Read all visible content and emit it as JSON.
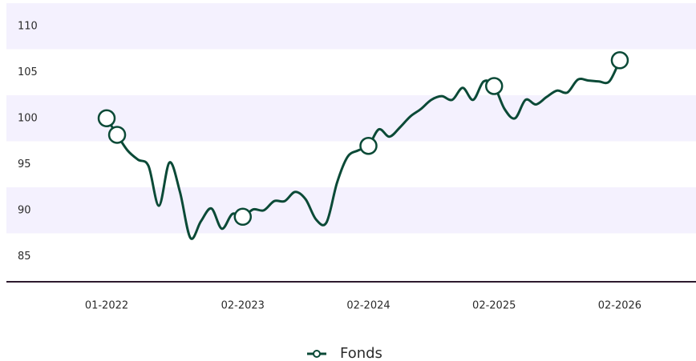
{
  "chart_data": {
    "type": "line",
    "categories": [
      "01-2022",
      null,
      null,
      null,
      null,
      null,
      null,
      null,
      null,
      null,
      null,
      null,
      null,
      "02-2023",
      null,
      null,
      null,
      null,
      null,
      null,
      null,
      null,
      null,
      null,
      null,
      "02-2024",
      null,
      null,
      null,
      null,
      null,
      null,
      null,
      null,
      null,
      null,
      null,
      "02-2025",
      null,
      null,
      null,
      null,
      null,
      null,
      null,
      null,
      null,
      null,
      null,
      "02-2026"
    ],
    "series": [
      {
        "name": "Fonds",
        "color": "#0b4a37",
        "values": [
          100,
          98.2,
          96.5,
          95.5,
          94.8,
          90.5,
          95.2,
          92,
          87,
          88.8,
          90.2,
          88,
          89.6,
          89.3,
          90.1,
          90,
          91,
          91,
          92,
          91.2,
          89,
          88.7,
          93,
          95.8,
          96.5,
          97,
          98.8,
          98,
          99,
          100.2,
          101,
          102,
          102.4,
          102,
          103.3,
          102,
          104,
          103.5,
          101,
          100,
          102,
          101.5,
          102.3,
          103,
          102.8,
          104.2,
          104.1,
          104,
          104,
          106.3
        ],
        "marker_indices": [
          0,
          1,
          13,
          25,
          37,
          49
        ]
      }
    ],
    "ylim": [
      82.5,
      112.5
    ],
    "yticks": [
      85,
      90,
      95,
      100,
      105,
      110
    ],
    "band_color": "#f4f1fe",
    "legend": "bottom"
  }
}
